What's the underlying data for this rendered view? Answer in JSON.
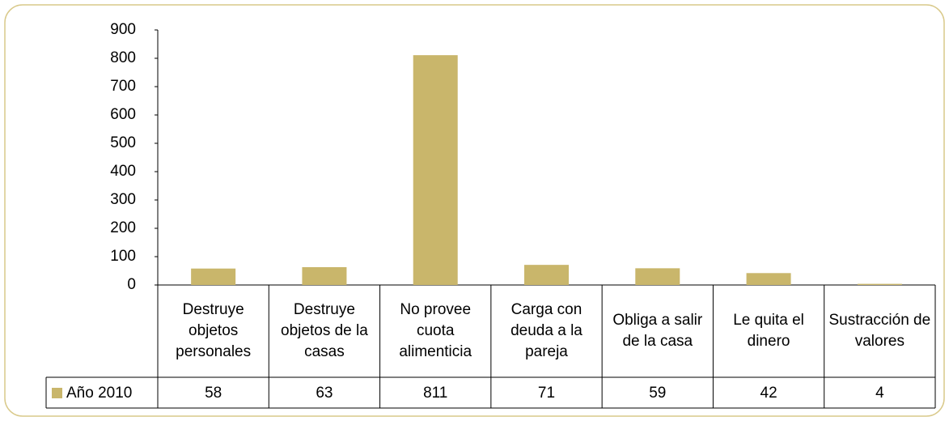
{
  "chart_data": {
    "type": "bar",
    "categories": [
      "Destruye objetos personales",
      "Destruye objetos de la casas",
      "No provee cuota alimenticia",
      "Carga con deuda a la pareja",
      "Obliga a salir de la casa",
      "Le quita el dinero",
      "Sustracción de valores"
    ],
    "series": [
      {
        "name": "Año 2010",
        "color": "#c9b66b",
        "values": [
          58,
          63,
          811,
          71,
          59,
          42,
          4
        ]
      }
    ],
    "ylim": [
      0,
      900
    ],
    "yticks": [
      0,
      100,
      200,
      300,
      400,
      500,
      600,
      700,
      800,
      900
    ],
    "legend": "bottom-left"
  }
}
